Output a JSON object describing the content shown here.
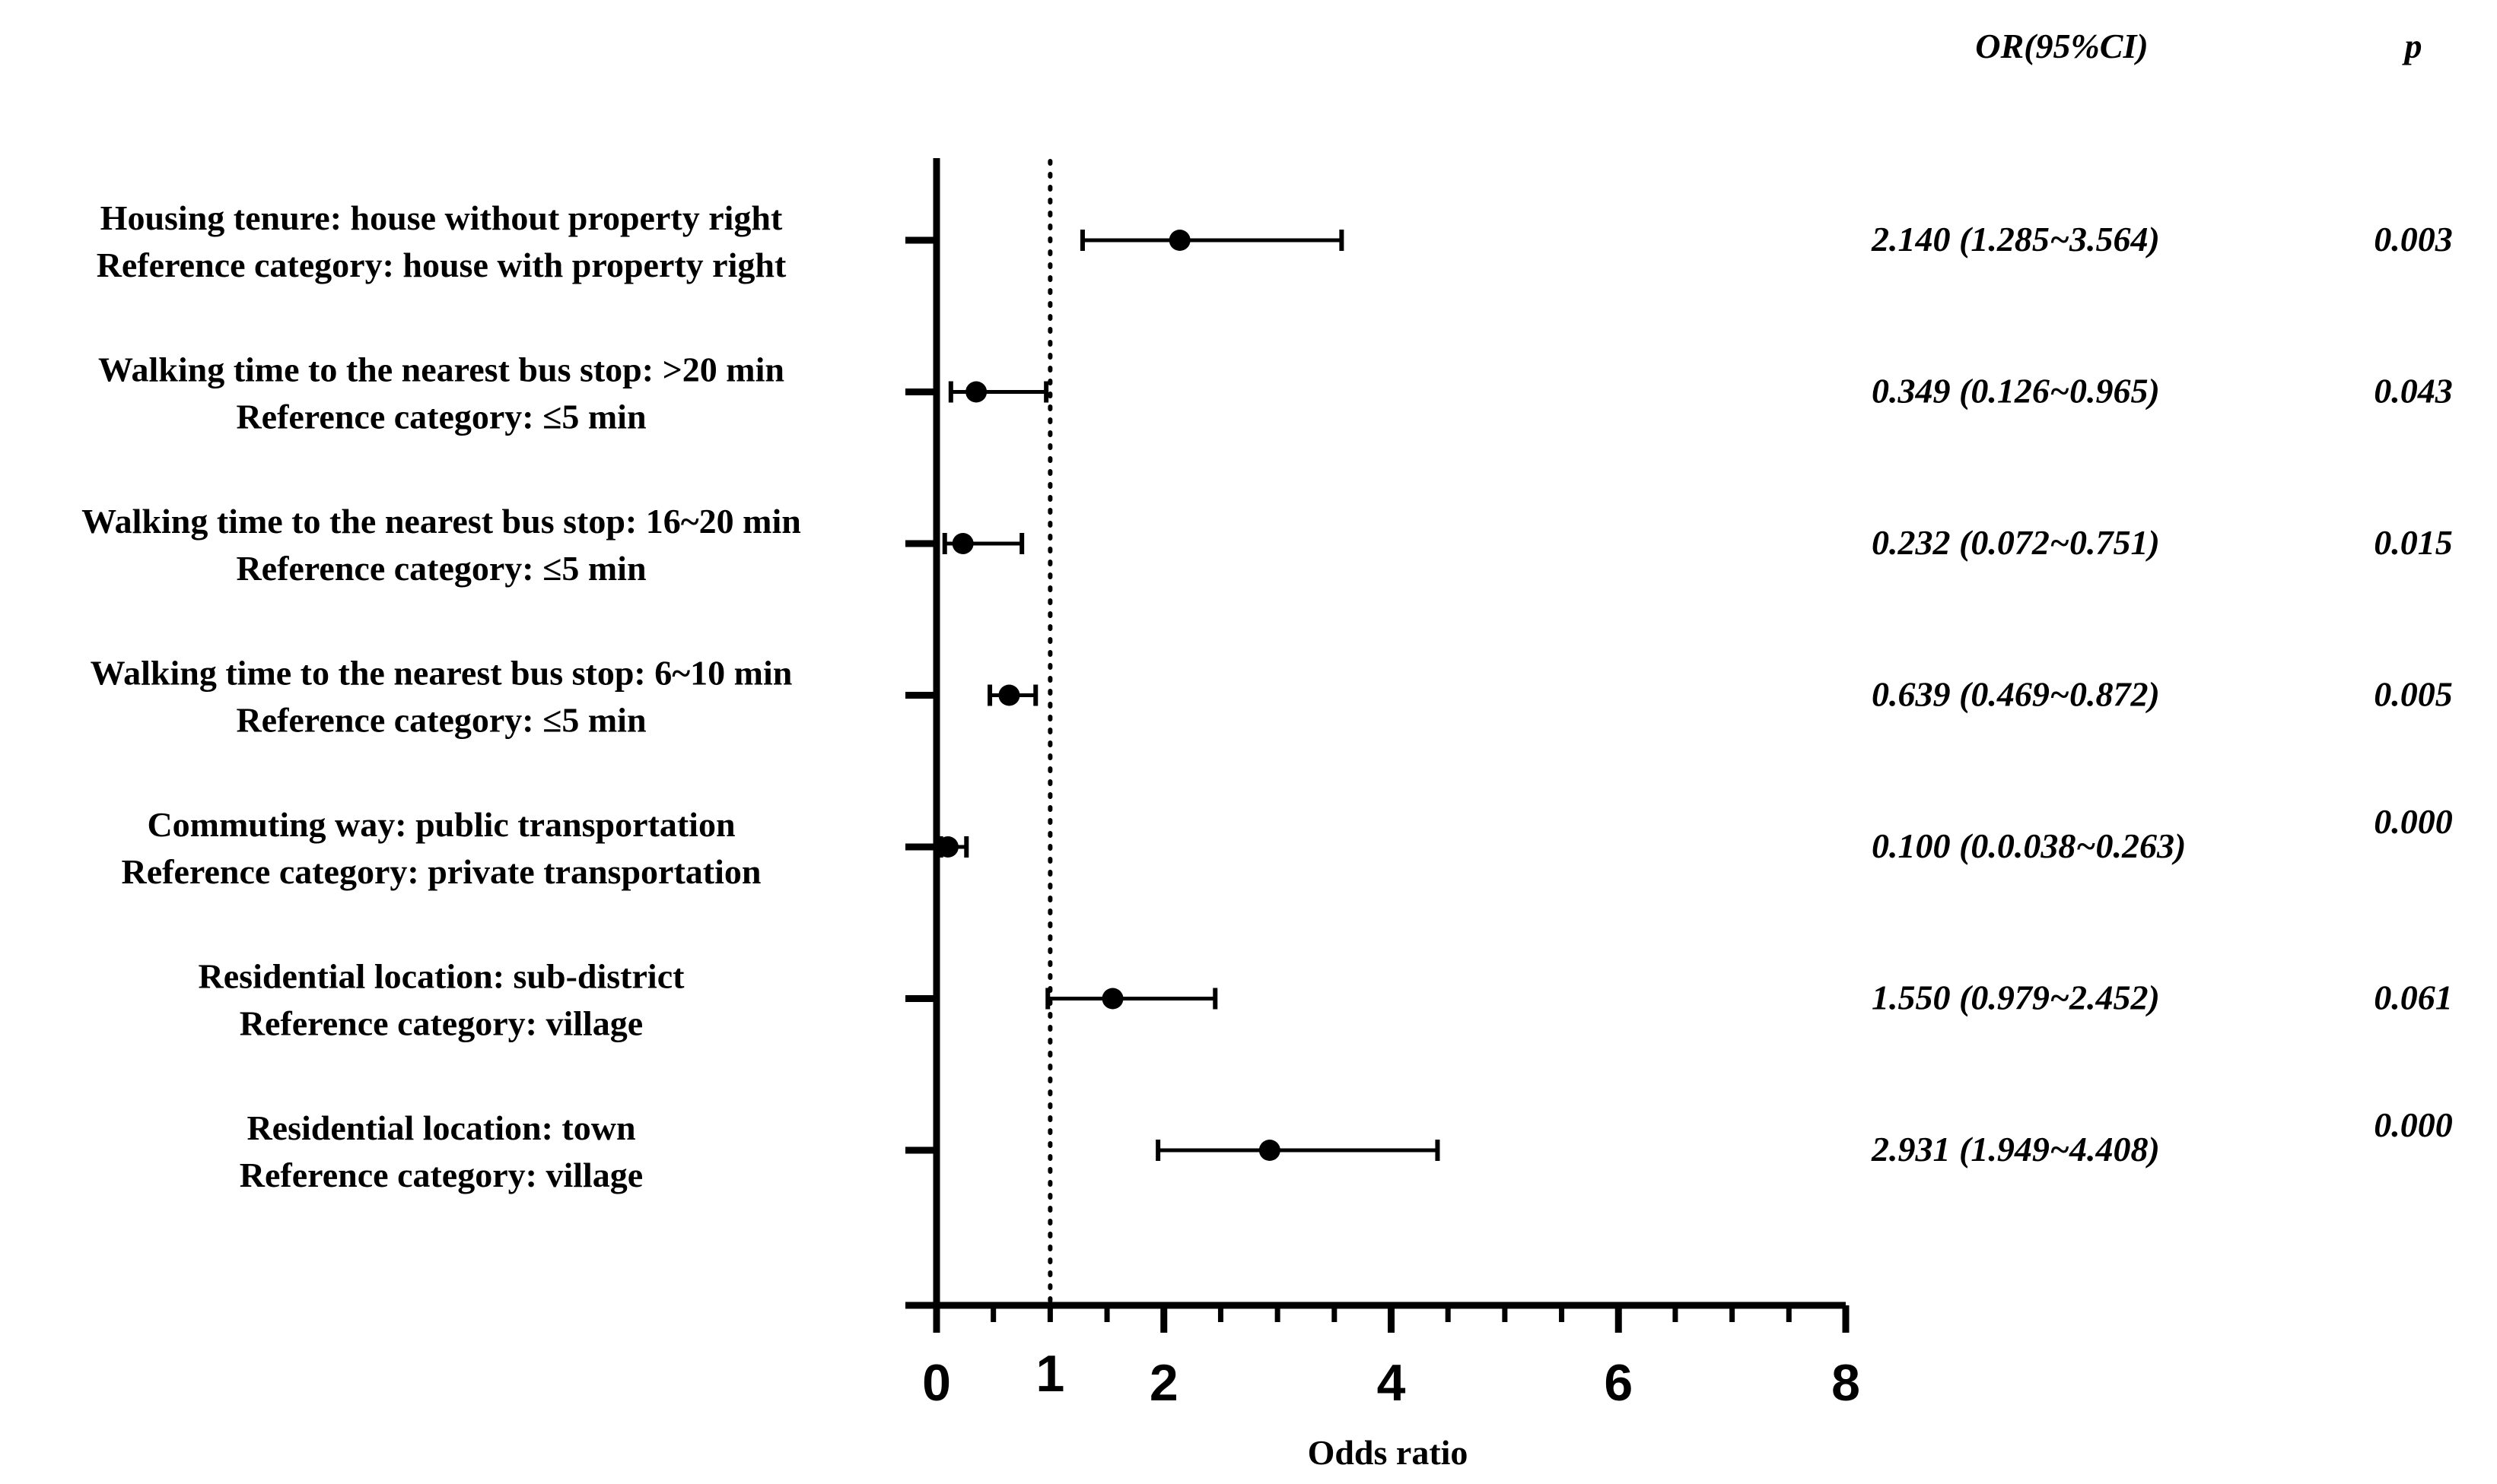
{
  "chart_data": {
    "type": "forest",
    "xlabel": "Odds ratio",
    "xlim": [
      0,
      8
    ],
    "x_ticks": [
      "0",
      "1",
      "2",
      "4",
      "6",
      "8"
    ],
    "reference_line": 1,
    "columns": {
      "or_header": "OR(95%CI)",
      "p_header": "p"
    },
    "rows": [
      {
        "label1": "Housing tenure: house without property right",
        "label2": "Reference category: house with property right",
        "or": 2.14,
        "low": 1.285,
        "high": 3.564,
        "or_text": "2.140 (1.285~3.564)",
        "p": "0.003"
      },
      {
        "label1": "Walking time to the nearest bus stop: >20 min",
        "label2": "Reference category: ≤5 min",
        "or": 0.349,
        "low": 0.126,
        "high": 0.965,
        "or_text": "0.349 (0.126~0.965)",
        "p": "0.043"
      },
      {
        "label1": "Walking time to the nearest bus stop: 16~20 min",
        "label2": "Reference category: ≤5 min",
        "or": 0.232,
        "low": 0.072,
        "high": 0.751,
        "or_text": "0.232 (0.072~0.751)",
        "p": "0.015"
      },
      {
        "label1": "Walking time to the nearest bus stop: 6~10 min",
        "label2": "Reference category: ≤5 min",
        "or": 0.639,
        "low": 0.469,
        "high": 0.872,
        "or_text": "0.639 (0.469~0.872)",
        "p": "0.005"
      },
      {
        "label1": "Commuting way: public  transportation",
        "label2": "Reference category: private transportation",
        "or": 0.1,
        "low": 0.038,
        "high": 0.263,
        "or_text": "0.100 (0.0.038~0.263)",
        "p": "0.000"
      },
      {
        "label1": "Residential location: sub-district",
        "label2": "Reference category: village",
        "or": 1.55,
        "low": 0.979,
        "high": 2.452,
        "or_text": "1.550 (0.979~2.452)",
        "p": "0.061"
      },
      {
        "label1": "Residential location: town",
        "label2": "Reference category: village",
        "or": 2.931,
        "low": 1.949,
        "high": 4.408,
        "or_text": "2.931 (1.949~4.408)",
        "p": "0.000"
      }
    ]
  }
}
